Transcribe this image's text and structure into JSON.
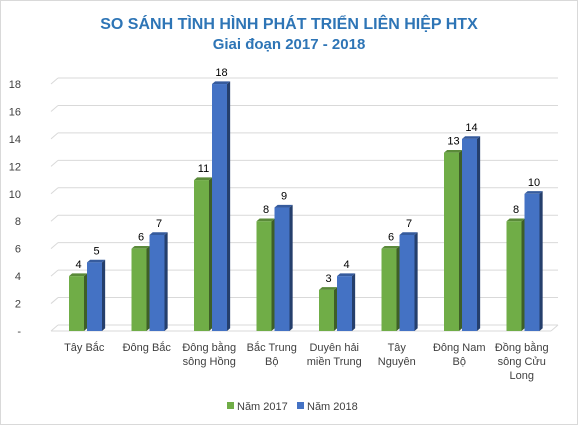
{
  "chart_data": {
    "type": "bar",
    "title": "SO SÁNH  TÌNH HÌNH  PHÁT TRIỂN LIÊN HIỆP HTX",
    "subtitle": "Giai đoạn 2017 - 2018",
    "categories": [
      [
        "Tây Bắc"
      ],
      [
        "Đông Bắc"
      ],
      [
        "Đông bằng",
        "sông Hồng"
      ],
      [
        "Bắc Trung",
        "Bộ"
      ],
      [
        "Duyên hải",
        "miền Trung"
      ],
      [
        "Tây",
        "Nguyên"
      ],
      [
        "Đông Nam",
        "Bộ"
      ],
      [
        "Đồng bằng",
        "sông Cửu",
        "Long"
      ]
    ],
    "series": [
      {
        "name": "Năm 2017",
        "color": "#70ad47",
        "values": [
          4,
          6,
          11,
          8,
          3,
          6,
          13,
          8
        ]
      },
      {
        "name": "Năm 2018",
        "color": "#4472c4",
        "values": [
          5,
          7,
          18,
          9,
          4,
          7,
          14,
          10
        ]
      }
    ],
    "ylim": [
      0,
      18
    ],
    "yticks": [
      "-",
      "2",
      "4",
      "6",
      "8",
      "10",
      "12",
      "14",
      "16",
      "18"
    ],
    "grid": true,
    "legend_position": "bottom",
    "style": "3d-clustered-bar"
  }
}
